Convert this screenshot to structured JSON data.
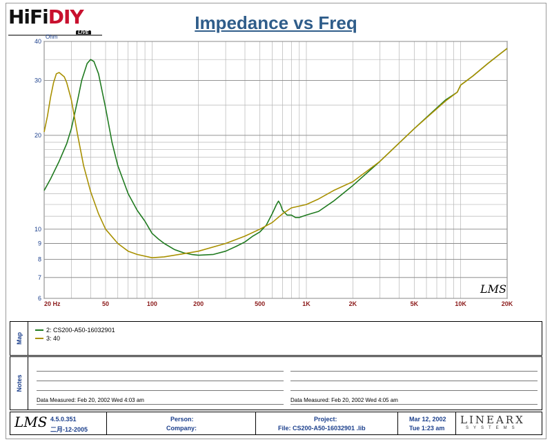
{
  "logo": {
    "hifi": "HiFi",
    "diy": "DIY",
    "live": "LIVE"
  },
  "title": "Impedance vs Freq",
  "chart_data": {
    "type": "line",
    "title": "Impedance vs Freq",
    "xlabel": "",
    "ylabel": "Ohm",
    "x_scale": "log",
    "y_scale": "log",
    "xlim": [
      20,
      20000
    ],
    "ylim": [
      6,
      40
    ],
    "grid": true,
    "x_ticks": [
      20,
      50,
      100,
      200,
      500,
      1000,
      2000,
      5000,
      10000,
      20000
    ],
    "x_tick_labels": [
      "20  Hz",
      "50",
      "100",
      "200",
      "500",
      "1K",
      "2K",
      "5K",
      "10K",
      "20K"
    ],
    "y_ticks": [
      6,
      7,
      8,
      9,
      10,
      20,
      30,
      40
    ],
    "y_tick_labels": [
      "6",
      "7",
      "8",
      "9",
      "10",
      "20",
      "30",
      "40"
    ],
    "watermark": "LMS",
    "series": [
      {
        "name": "2: CS200-A50-16032901",
        "color": "#1f7a1f",
        "x": [
          20,
          22,
          25,
          28,
          30,
          33,
          35,
          38,
          40,
          42,
          45,
          50,
          55,
          60,
          70,
          80,
          90,
          100,
          110,
          120,
          140,
          160,
          180,
          200,
          250,
          300,
          350,
          400,
          450,
          500,
          550,
          600,
          640,
          660,
          680,
          700,
          750,
          800,
          850,
          900,
          1000,
          1200,
          1500,
          2000,
          3000,
          5000,
          8000,
          9500,
          10000,
          10500,
          12000,
          15000,
          18000,
          20000
        ],
        "y": [
          13.3,
          14.5,
          16.5,
          18.8,
          21,
          26,
          30,
          34,
          35,
          34.5,
          31.5,
          24.5,
          19,
          16,
          13,
          11.5,
          10.6,
          9.7,
          9.3,
          9,
          8.6,
          8.4,
          8.3,
          8.25,
          8.3,
          8.5,
          8.8,
          9.1,
          9.5,
          9.8,
          10.3,
          11.2,
          12,
          12.3,
          12,
          11.5,
          11.1,
          11.1,
          10.9,
          10.9,
          11.1,
          11.4,
          12.3,
          13.8,
          16.5,
          21,
          26,
          27.5,
          29,
          29.5,
          31,
          34,
          36.5,
          38
        ]
      },
      {
        "name": "3: 40",
        "color": "#a89000",
        "x": [
          20,
          21,
          22,
          23,
          24,
          25,
          27,
          28,
          30,
          33,
          36,
          40,
          45,
          50,
          60,
          70,
          80,
          100,
          120,
          150,
          200,
          300,
          400,
          500,
          600,
          700,
          800,
          1000,
          1200,
          1500,
          2000,
          3000,
          5000,
          8000,
          9500,
          10000,
          10500,
          12000,
          15000,
          18000,
          20000
        ],
        "y": [
          20.5,
          23,
          26.5,
          29.5,
          31.5,
          31.8,
          30.8,
          29.5,
          26,
          20,
          16,
          13.2,
          11.2,
          10,
          9,
          8.5,
          8.3,
          8.1,
          8.15,
          8.3,
          8.5,
          9,
          9.5,
          10,
          10.5,
          11.2,
          11.7,
          12,
          12.5,
          13.3,
          14.2,
          16.5,
          21,
          25.8,
          27.5,
          29,
          29.5,
          31,
          34,
          36.5,
          38
        ]
      }
    ]
  },
  "map": {
    "label": "Map",
    "items": [
      {
        "label": "2: CS200-A50-16032901",
        "color": "#1f7a1f"
      },
      {
        "label": "3: 40",
        "color": "#a89000"
      }
    ]
  },
  "notes": {
    "label": "Notes",
    "left_measured": "Data Measured: Feb 20, 2002  Wed  4:03 am",
    "right_measured": "Data Measured: Feb 20, 2002  Wed  4:05 am"
  },
  "footer": {
    "lms": "LMS",
    "version": "4.5.0.351",
    "version_date": "二月-12-2005",
    "person": "Person:",
    "company": "Company:",
    "project": "Project:",
    "file": "File: CS200-A50-16032901 .lib",
    "date": "Mar 12, 2002",
    "time": "Tue  1:23 am",
    "brand": "LINEARX",
    "brand_sub": "SYSTEMS"
  }
}
